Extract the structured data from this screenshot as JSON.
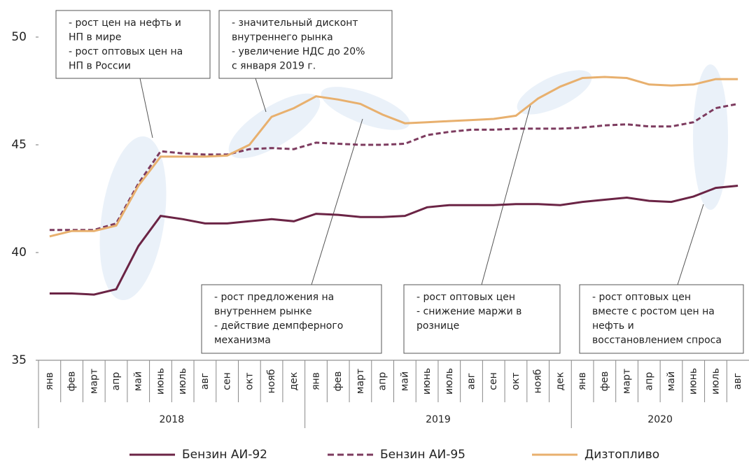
{
  "chart_data": {
    "type": "line",
    "groups": [
      {
        "label": "2018",
        "categories": [
          "янв",
          "фев",
          "март",
          "апр",
          "май",
          "июнь",
          "июль",
          "авг",
          "сен",
          "окт",
          "нояб",
          "дек"
        ]
      },
      {
        "label": "2019",
        "categories": [
          "янв",
          "фев",
          "март",
          "апр",
          "май",
          "июнь",
          "июль",
          "авг",
          "сен",
          "окт",
          "нояб",
          "дек"
        ]
      },
      {
        "label": "2020",
        "categories": [
          "янв",
          "фев",
          "март",
          "апр",
          "май",
          "июнь",
          "июль",
          "авг"
        ]
      }
    ],
    "series": [
      {
        "name": "Бензин АИ-92",
        "color": "#6b2445",
        "dash": false,
        "values": [
          38.1,
          38.1,
          38.05,
          38.3,
          40.3,
          41.7,
          41.55,
          41.35,
          41.35,
          41.45,
          41.55,
          41.45,
          41.8,
          41.75,
          41.65,
          41.65,
          41.7,
          42.1,
          42.2,
          42.2,
          42.2,
          42.25,
          42.25,
          42.2,
          42.35,
          42.45,
          42.55,
          42.4,
          42.35,
          42.6,
          43.0,
          43.1
        ]
      },
      {
        "name": "Бензин АИ-95",
        "color": "#7d3b5f",
        "dash": true,
        "values": [
          41.05,
          41.05,
          41.05,
          41.35,
          43.2,
          44.7,
          44.6,
          44.55,
          44.55,
          44.8,
          44.85,
          44.8,
          45.1,
          45.05,
          45.0,
          45.0,
          45.05,
          45.45,
          45.6,
          45.7,
          45.7,
          45.75,
          45.75,
          45.75,
          45.8,
          45.9,
          45.95,
          45.85,
          45.85,
          46.05,
          46.7,
          46.9
        ]
      },
      {
        "name": "Дизтопливо",
        "color": "#e8b06e",
        "dash": false,
        "values": [
          40.75,
          41.0,
          41.0,
          41.25,
          43.1,
          44.45,
          44.45,
          44.45,
          44.5,
          45.0,
          46.3,
          46.7,
          47.25,
          47.1,
          46.9,
          46.4,
          46.0,
          46.05,
          46.1,
          46.15,
          46.2,
          46.35,
          47.15,
          47.7,
          48.1,
          48.15,
          48.1,
          47.8,
          47.75,
          47.8,
          48.05,
          48.05
        ]
      }
    ],
    "ylim": [
      35,
      50
    ],
    "yticks": [
      35,
      40,
      45,
      50
    ],
    "annotations": [
      {
        "lines": [
          "- рост цен на нефть и",
          "НП в мире",
          "- рост оптовых цен на",
          "НП в России"
        ]
      },
      {
        "lines": [
          "- значительный дисконт",
          "внутреннего рынка",
          "- увеличение НДС до 20%",
          "с января 2019 г."
        ]
      },
      {
        "lines": [
          "- рост предложения на",
          "внутреннем рынке",
          "- действие демпферного",
          "механизма"
        ]
      },
      {
        "lines": [
          "- рост оптовых цен",
          "- снижение маржи в",
          "рознице"
        ]
      },
      {
        "lines": [
          "- рост оптовых цен",
          "вместе с ростом цен на",
          "нефть и",
          "восстановлением спроса"
        ]
      }
    ]
  }
}
